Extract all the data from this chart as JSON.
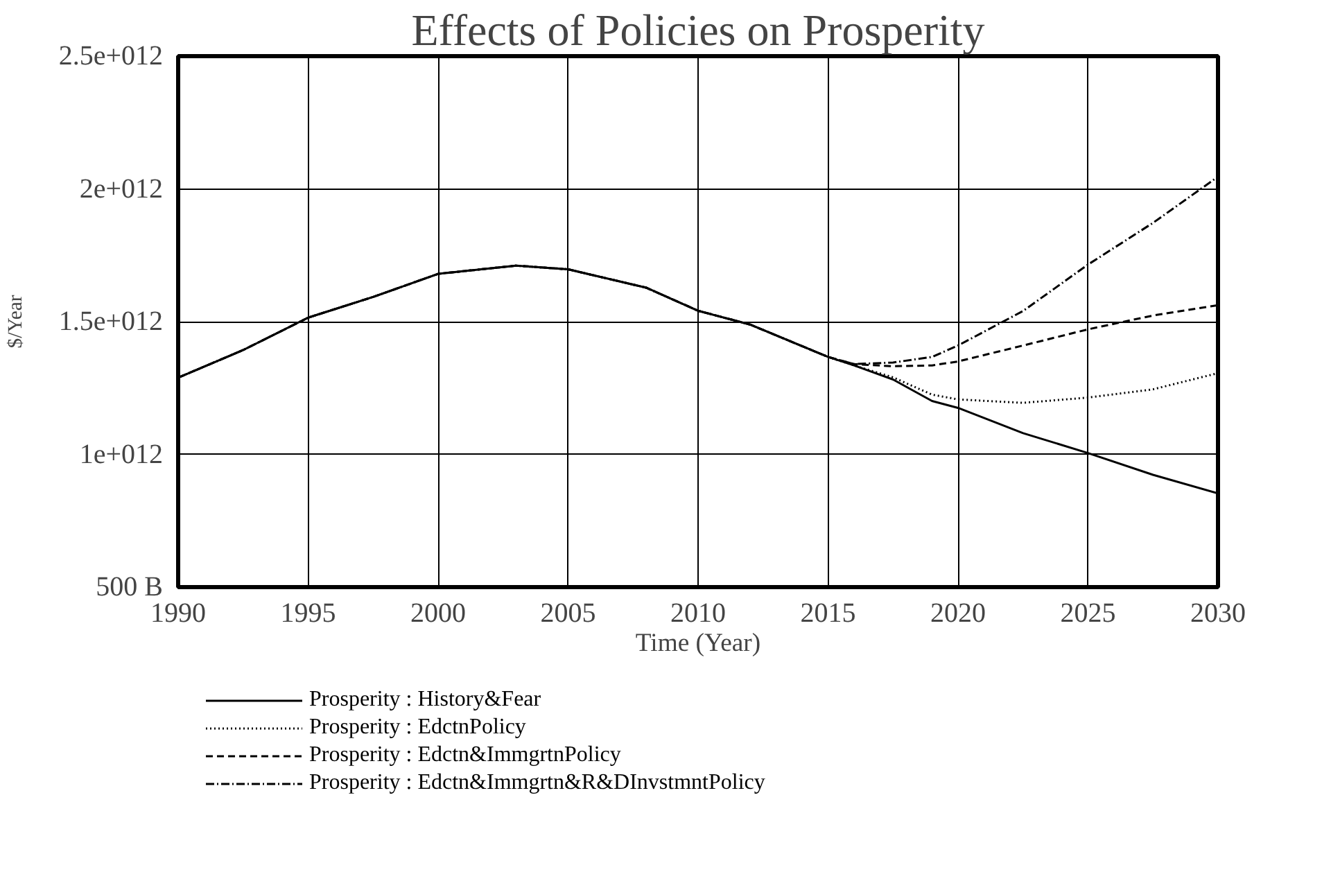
{
  "chart_data": {
    "type": "line",
    "title": "Effects of Policies on Prosperity",
    "xlabel": "Time (Year)",
    "ylabel": "$/Year",
    "x": [
      1990,
      1992.5,
      1995,
      1997.5,
      2000,
      2003,
      2005,
      2008,
      2010,
      2012,
      2015,
      2016,
      2017.5,
      2019,
      2020,
      2022.5,
      2025,
      2027.5,
      2030
    ],
    "series": [
      {
        "name": "Prosperity : History&Fear",
        "color": "#000000",
        "line_style": "solid",
        "values": [
          1289000000000.0,
          1393000000000.0,
          1515000000000.0,
          1593000000000.0,
          1680000000000.0,
          1711000000000.0,
          1697000000000.0,
          1628000000000.0,
          1541000000000.0,
          1489000000000.0,
          1367000000000.0,
          1335000000000.0,
          1282000000000.0,
          1201000000000.0,
          1175000000000.0,
          1080000000000.0,
          1005000000000.0,
          923000000000.0,
          853000000000.0
        ]
      },
      {
        "name": "Prosperity : EdctnPolicy",
        "color": "#000000",
        "line_style": "dotted",
        "values": [
          1289000000000.0,
          1393000000000.0,
          1515000000000.0,
          1593000000000.0,
          1680000000000.0,
          1711000000000.0,
          1697000000000.0,
          1628000000000.0,
          1541000000000.0,
          1489000000000.0,
          1367000000000.0,
          1335000000000.0,
          1290000000000.0,
          1225000000000.0,
          1207000000000.0,
          1194000000000.0,
          1214000000000.0,
          1245000000000.0,
          1306000000000.0
        ]
      },
      {
        "name": "Prosperity : Edctn&ImmgrtnPolicy",
        "color": "#000000",
        "line_style": "dashed",
        "values": [
          1289000000000.0,
          1393000000000.0,
          1515000000000.0,
          1593000000000.0,
          1680000000000.0,
          1711000000000.0,
          1697000000000.0,
          1628000000000.0,
          1541000000000.0,
          1489000000000.0,
          1367000000000.0,
          1340000000000.0,
          1332000000000.0,
          1335000000000.0,
          1350000000000.0,
          1410000000000.0,
          1471000000000.0,
          1523000000000.0,
          1562000000000.0
        ]
      },
      {
        "name": "Prosperity : Edctn&Immgrtn&R&DInvstmntPolicy",
        "color": "#000000",
        "line_style": "dashdot",
        "values": [
          1289000000000.0,
          1393000000000.0,
          1515000000000.0,
          1593000000000.0,
          1680000000000.0,
          1711000000000.0,
          1697000000000.0,
          1628000000000.0,
          1541000000000.0,
          1489000000000.0,
          1367000000000.0,
          1340000000000.0,
          1346000000000.0,
          1367000000000.0,
          1410000000000.0,
          1540000000000.0,
          1715000000000.0,
          1872000000000.0,
          2046000000000.0
        ]
      }
    ],
    "xlim": [
      1990,
      2030
    ],
    "xticks": [
      1990,
      1995,
      2000,
      2005,
      2010,
      2015,
      2020,
      2025,
      2030
    ],
    "ylim": [
      500000000000.0,
      2500000000000.0
    ],
    "yticks": [
      {
        "value": 500000000000.0,
        "label": "500 B"
      },
      {
        "value": 1000000000000.0,
        "label": "1e+012"
      },
      {
        "value": 1500000000000.0,
        "label": "1.5e+012"
      },
      {
        "value": 2000000000000.0,
        "label": "2e+012"
      },
      {
        "value": 2500000000000.0,
        "label": "2.5e+012"
      }
    ],
    "grid": true,
    "legend": "bottom"
  }
}
